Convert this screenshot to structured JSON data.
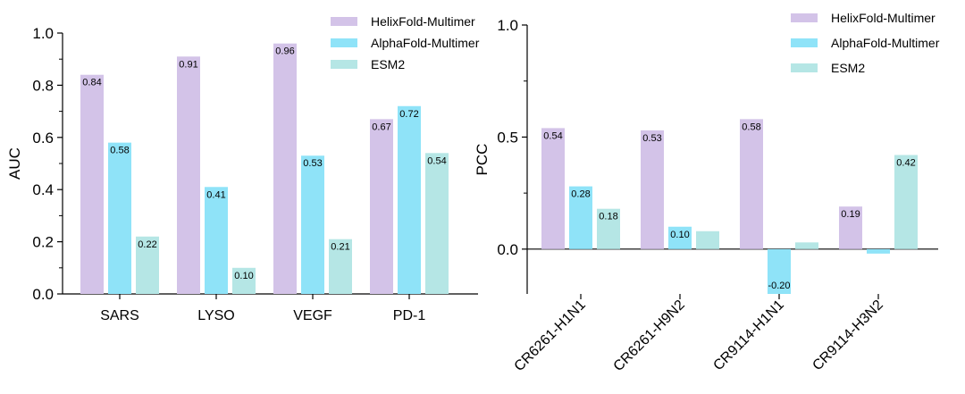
{
  "chart_data": [
    {
      "type": "bar",
      "ylabel": "AUC",
      "ylim": [
        0,
        1.0
      ],
      "yticks": [
        "0.0",
        "0.2",
        "0.4",
        "0.6",
        "0.8",
        "1.0"
      ],
      "categories": [
        "SARS",
        "LYSO",
        "VEGF",
        "PD-1"
      ],
      "series": [
        {
          "name": "HelixFold-Multimer",
          "color": "#D3C3E8",
          "values": [
            0.84,
            0.91,
            0.96,
            0.67
          ],
          "labels": [
            "0.84",
            "0.91",
            "0.96",
            "0.67"
          ]
        },
        {
          "name": "AlphaFold-Multimer",
          "color": "#8FE3F8",
          "values": [
            0.58,
            0.41,
            0.53,
            0.72
          ],
          "labels": [
            "0.58",
            "0.41",
            "0.53",
            "0.72"
          ]
        },
        {
          "name": "ESM2",
          "color": "#B5E6E5",
          "values": [
            0.22,
            0.1,
            0.21,
            0.54
          ],
          "labels": [
            "0.22",
            "0.10",
            "0.21",
            "0.54"
          ]
        }
      ],
      "legend_position": "top-right",
      "grid": false
    },
    {
      "type": "bar",
      "ylabel": "PCC",
      "ylim": [
        -0.2,
        1.0
      ],
      "yticks": [
        "0.0",
        "0.5",
        "1.0"
      ],
      "categories": [
        "CR6261-H1N1",
        "CR6261-H9N2",
        "CR9114-H1N1",
        "CR9114-H3N2"
      ],
      "series": [
        {
          "name": "HelixFold-Multimer",
          "color": "#D3C3E8",
          "values": [
            0.54,
            0.53,
            0.58,
            0.19
          ],
          "labels": [
            "0.54",
            "0.53",
            "0.58",
            "0.19"
          ]
        },
        {
          "name": "AlphaFold-Multimer",
          "color": "#8FE3F8",
          "values": [
            0.28,
            0.1,
            -0.2,
            -0.02
          ],
          "labels": [
            "0.28",
            "0.10",
            "-0.20",
            ""
          ]
        },
        {
          "name": "ESM2",
          "color": "#B5E6E5",
          "values": [
            0.18,
            0.08,
            0.03,
            0.42
          ],
          "labels": [
            "0.18",
            "",
            "",
            "0.42"
          ]
        }
      ],
      "legend_position": "top-right",
      "grid": false
    }
  ]
}
